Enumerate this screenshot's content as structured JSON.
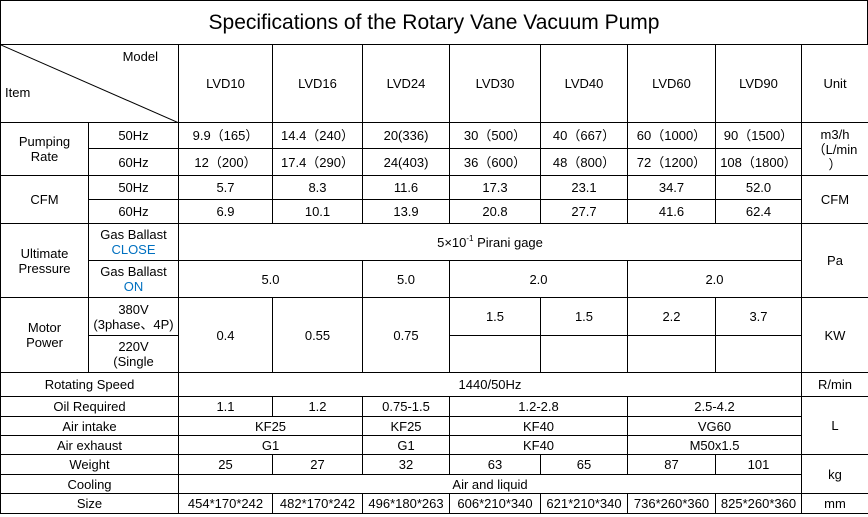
{
  "title": "Specifications of the Rotary Vane Vacuum Pump",
  "header": {
    "model": "Model",
    "item": "Item",
    "models": [
      "LVD10",
      "LVD16",
      "LVD24",
      "LVD30",
      "LVD40",
      "LVD60",
      "LVD90"
    ],
    "unit": "Unit"
  },
  "pumping_rate": {
    "label_1": "Pumping",
    "label_2": "Rate",
    "hz50": "50Hz",
    "hz60": "60Hz",
    "values_50": [
      "9.9（165）",
      "14.4（240）",
      "20(336)",
      "30（500）",
      "40（667）",
      "60（1000）",
      "90（1500）"
    ],
    "values_60": [
      "12（200）",
      "17.4（290）",
      "24(403)",
      "36（600）",
      "48（800）",
      "72（1200）",
      "108（1800）"
    ],
    "unit_1": "m3/h",
    "unit_2": "（L/min",
    "unit_3": "）"
  },
  "cfm": {
    "label": "CFM",
    "hz50": "50Hz",
    "hz60": "60Hz",
    "values_50": [
      "5.7",
      "8.3",
      "11.6",
      "17.3",
      "23.1",
      "34.7",
      "52.0"
    ],
    "values_60": [
      "6.9",
      "10.1",
      "13.9",
      "20.8",
      "27.7",
      "41.6",
      "62.4"
    ],
    "unit": "CFM"
  },
  "ultimate_pressure": {
    "label_1": "Ultimate",
    "label_2": "Pressure",
    "close_1": "Gas Ballast",
    "close_2": "CLOSE",
    "on_1": "Gas Ballast",
    "on_2": "ON",
    "close_value_pre": "5×10",
    "close_value_exp": "-1",
    "close_value_post": " Pirani gage",
    "on_values": [
      "5.0",
      "5.0",
      "2.0",
      "2.0"
    ],
    "unit": "Pa"
  },
  "motor_power": {
    "label_1": "Motor",
    "label_2": "Power",
    "v380_1": "380V",
    "v380_2": "(3phase、4P)",
    "v220_1": "220V",
    "v220_2": "(Single",
    "shared": [
      "0.4",
      "0.55",
      "0.75"
    ],
    "values_380": [
      "1.5",
      "1.5",
      "2.2",
      "3.7"
    ],
    "unit": "KW"
  },
  "rotating_speed": {
    "label": "Rotating Speed",
    "value": "1440/50Hz",
    "unit": "R/min"
  },
  "oil_required": {
    "label": "Oil Required",
    "values": [
      "1.1",
      "1.2",
      "0.75-1.5",
      "1.2-2.8",
      "2.5-4.2"
    ],
    "unit": "L"
  },
  "air_intake": {
    "label": "Air intake",
    "values": [
      "KF25",
      "KF25",
      "KF40",
      "VG60"
    ]
  },
  "air_exhaust": {
    "label": "Air exhaust",
    "values": [
      "G1",
      "G1",
      "KF40",
      "M50x1.5"
    ]
  },
  "weight": {
    "label": "Weight",
    "values": [
      "25",
      "27",
      "32",
      "63",
      "65",
      "87",
      "101"
    ],
    "unit": "kg"
  },
  "cooling": {
    "label": "Cooling",
    "value": "Air and liquid"
  },
  "size": {
    "label": "Size",
    "values": [
      "454*170*242",
      "482*170*242",
      "496*180*263",
      "606*210*340",
      "621*210*340",
      "736*260*360",
      "825*260*360"
    ],
    "unit": "mm"
  }
}
